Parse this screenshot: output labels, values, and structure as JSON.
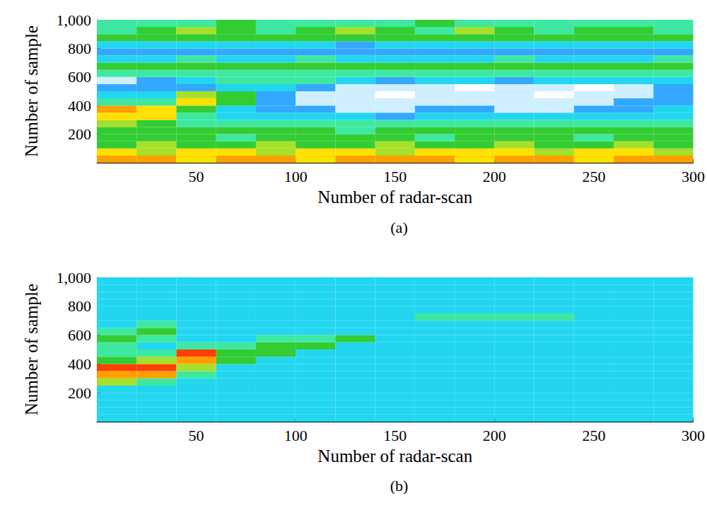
{
  "chart_data": [
    {
      "type": "heatmap",
      "title": "(a)",
      "x_label": "Number of radar-scan",
      "y_label": "Number of sample",
      "xlim": [
        0,
        300
      ],
      "xticks": [
        50,
        100,
        150,
        200,
        250,
        300
      ],
      "ylim": [
        0,
        1000
      ],
      "yticks": [
        200,
        400,
        600,
        800,
        1000
      ],
      "grid": false,
      "zlim": [
        0,
        10
      ],
      "x_bins": [
        0,
        20,
        40,
        60,
        80,
        100,
        120,
        140,
        160,
        180,
        200,
        220,
        240,
        260,
        280,
        300
      ],
      "y_bins": [
        0,
        50,
        100,
        150,
        200,
        250,
        300,
        350,
        400,
        450,
        500,
        550,
        600,
        650,
        700,
        750,
        800,
        850,
        900,
        950,
        1000
      ],
      "cells": [
        [
          8,
          8,
          7,
          8,
          8,
          7,
          8,
          8,
          8,
          7,
          8,
          8,
          7,
          8,
          8
        ],
        [
          7,
          6,
          7,
          7,
          6,
          7,
          7,
          6,
          7,
          7,
          7,
          6,
          7,
          7,
          6
        ],
        [
          5,
          6,
          5,
          5,
          6,
          5,
          5,
          6,
          5,
          5,
          6,
          5,
          5,
          6,
          5
        ],
        [
          5,
          5,
          5,
          4,
          5,
          5,
          5,
          5,
          4,
          5,
          5,
          5,
          4,
          5,
          5
        ],
        [
          5,
          5,
          5,
          5,
          5,
          5,
          4,
          5,
          5,
          5,
          5,
          5,
          5,
          5,
          5
        ],
        [
          6,
          5,
          4,
          4,
          4,
          4,
          4,
          4,
          4,
          4,
          4,
          4,
          4,
          4,
          4
        ],
        [
          7,
          7,
          4,
          3,
          3,
          3,
          3,
          2,
          3,
          3,
          3,
          3,
          3,
          3,
          3
        ],
        [
          8,
          7,
          5,
          3,
          2,
          2,
          1,
          1,
          2,
          2,
          1,
          1,
          2,
          2,
          3
        ],
        [
          4,
          4,
          7,
          5,
          2,
          1,
          1,
          1,
          1,
          1,
          1,
          1,
          1,
          2,
          2
        ],
        [
          3,
          3,
          6,
          5,
          2,
          1,
          1,
          0,
          1,
          1,
          1,
          0,
          1,
          1,
          2
        ],
        [
          2,
          2,
          2,
          3,
          3,
          2,
          1,
          1,
          1,
          0,
          1,
          1,
          0,
          1,
          2
        ],
        [
          1,
          2,
          3,
          4,
          4,
          4,
          3,
          2,
          3,
          3,
          2,
          3,
          3,
          3,
          3
        ],
        [
          4,
          4,
          4,
          4,
          4,
          4,
          4,
          4,
          4,
          4,
          4,
          4,
          4,
          4,
          4
        ],
        [
          5,
          5,
          5,
          5,
          5,
          5,
          5,
          5,
          5,
          5,
          5,
          5,
          5,
          5,
          5
        ],
        [
          3,
          3,
          4,
          3,
          3,
          4,
          3,
          3,
          3,
          3,
          4,
          3,
          3,
          3,
          4
        ],
        [
          2,
          2,
          2,
          2,
          2,
          2,
          2,
          2,
          2,
          2,
          2,
          2,
          2,
          2,
          2
        ],
        [
          3,
          3,
          3,
          3,
          3,
          3,
          2,
          3,
          3,
          3,
          3,
          3,
          3,
          3,
          3
        ],
        [
          5,
          5,
          5,
          5,
          5,
          5,
          5,
          5,
          5,
          5,
          5,
          5,
          5,
          5,
          5
        ],
        [
          4,
          5,
          6,
          5,
          4,
          5,
          6,
          5,
          4,
          6,
          5,
          4,
          5,
          5,
          4
        ],
        [
          4,
          4,
          4,
          5,
          4,
          4,
          4,
          4,
          5,
          4,
          4,
          4,
          4,
          4,
          4
        ]
      ]
    },
    {
      "type": "heatmap",
      "title": "(b)",
      "x_label": "Number of radar-scan",
      "y_label": "Number of sample",
      "xlim": [
        0,
        300
      ],
      "xticks": [
        50,
        100,
        150,
        200,
        250,
        300
      ],
      "ylim": [
        0,
        1000
      ],
      "yticks": [
        200,
        400,
        600,
        800,
        1000
      ],
      "grid": false,
      "zlim": [
        0,
        10
      ],
      "x_bins": [
        0,
        20,
        40,
        60,
        80,
        100,
        120,
        140,
        160,
        180,
        200,
        220,
        240,
        260,
        280,
        300
      ],
      "y_bins": [
        0,
        50,
        100,
        150,
        200,
        250,
        300,
        350,
        400,
        450,
        500,
        550,
        600,
        650,
        700,
        750,
        800,
        850,
        900,
        950,
        1000
      ],
      "cells": [
        [
          3,
          3,
          3,
          3,
          3,
          3,
          3,
          3,
          3,
          3,
          3,
          3,
          3,
          3,
          3
        ],
        [
          3,
          3,
          3,
          3,
          3,
          3,
          3,
          3,
          3,
          3,
          3,
          3,
          3,
          3,
          3
        ],
        [
          3,
          3,
          3,
          3,
          3,
          3,
          3,
          3,
          3,
          3,
          3,
          3,
          3,
          3,
          3
        ],
        [
          3,
          3,
          3,
          3,
          3,
          3,
          3,
          3,
          3,
          3,
          3,
          3,
          3,
          3,
          3
        ],
        [
          3,
          3,
          3,
          3,
          3,
          3,
          3,
          3,
          3,
          3,
          3,
          3,
          3,
          3,
          3
        ],
        [
          6,
          4,
          3,
          3,
          3,
          3,
          3,
          3,
          3,
          3,
          3,
          3,
          3,
          3,
          3
        ],
        [
          8,
          8,
          4,
          3,
          3,
          3,
          3,
          3,
          3,
          3,
          3,
          3,
          3,
          3,
          3
        ],
        [
          9,
          9,
          6,
          3,
          3,
          3,
          3,
          3,
          3,
          3,
          3,
          3,
          3,
          3,
          3
        ],
        [
          5,
          6,
          8,
          5,
          3,
          3,
          3,
          3,
          3,
          3,
          3,
          3,
          3,
          3,
          3
        ],
        [
          4,
          4,
          9,
          5,
          5,
          3,
          3,
          3,
          3,
          3,
          3,
          3,
          3,
          3,
          3
        ],
        [
          4,
          3,
          4,
          4,
          5,
          5,
          3,
          3,
          3,
          3,
          3,
          3,
          3,
          3,
          3
        ],
        [
          5,
          4,
          3,
          3,
          4,
          4,
          5,
          3,
          3,
          3,
          3,
          3,
          3,
          3,
          3
        ],
        [
          4,
          5,
          3,
          3,
          3,
          3,
          3,
          3,
          3,
          3,
          3,
          3,
          3,
          3,
          3
        ],
        [
          3,
          4,
          3,
          3,
          3,
          3,
          3,
          3,
          3,
          3,
          3,
          3,
          3,
          3,
          3
        ],
        [
          3,
          3,
          3,
          3,
          3,
          3,
          3,
          3,
          4,
          4,
          4,
          4,
          3,
          3,
          3
        ],
        [
          3,
          3,
          3,
          3,
          3,
          3,
          3,
          3,
          3,
          3,
          3,
          3,
          3,
          3,
          3
        ],
        [
          3,
          3,
          3,
          3,
          3,
          3,
          3,
          3,
          3,
          3,
          3,
          3,
          3,
          3,
          3
        ],
        [
          3,
          3,
          3,
          3,
          3,
          3,
          3,
          3,
          3,
          3,
          3,
          3,
          3,
          3,
          3
        ],
        [
          3,
          3,
          3,
          3,
          3,
          3,
          3,
          3,
          3,
          3,
          3,
          3,
          3,
          3,
          3
        ],
        [
          3,
          3,
          3,
          3,
          3,
          3,
          3,
          3,
          3,
          3,
          3,
          3,
          3,
          3,
          3
        ]
      ]
    }
  ]
}
